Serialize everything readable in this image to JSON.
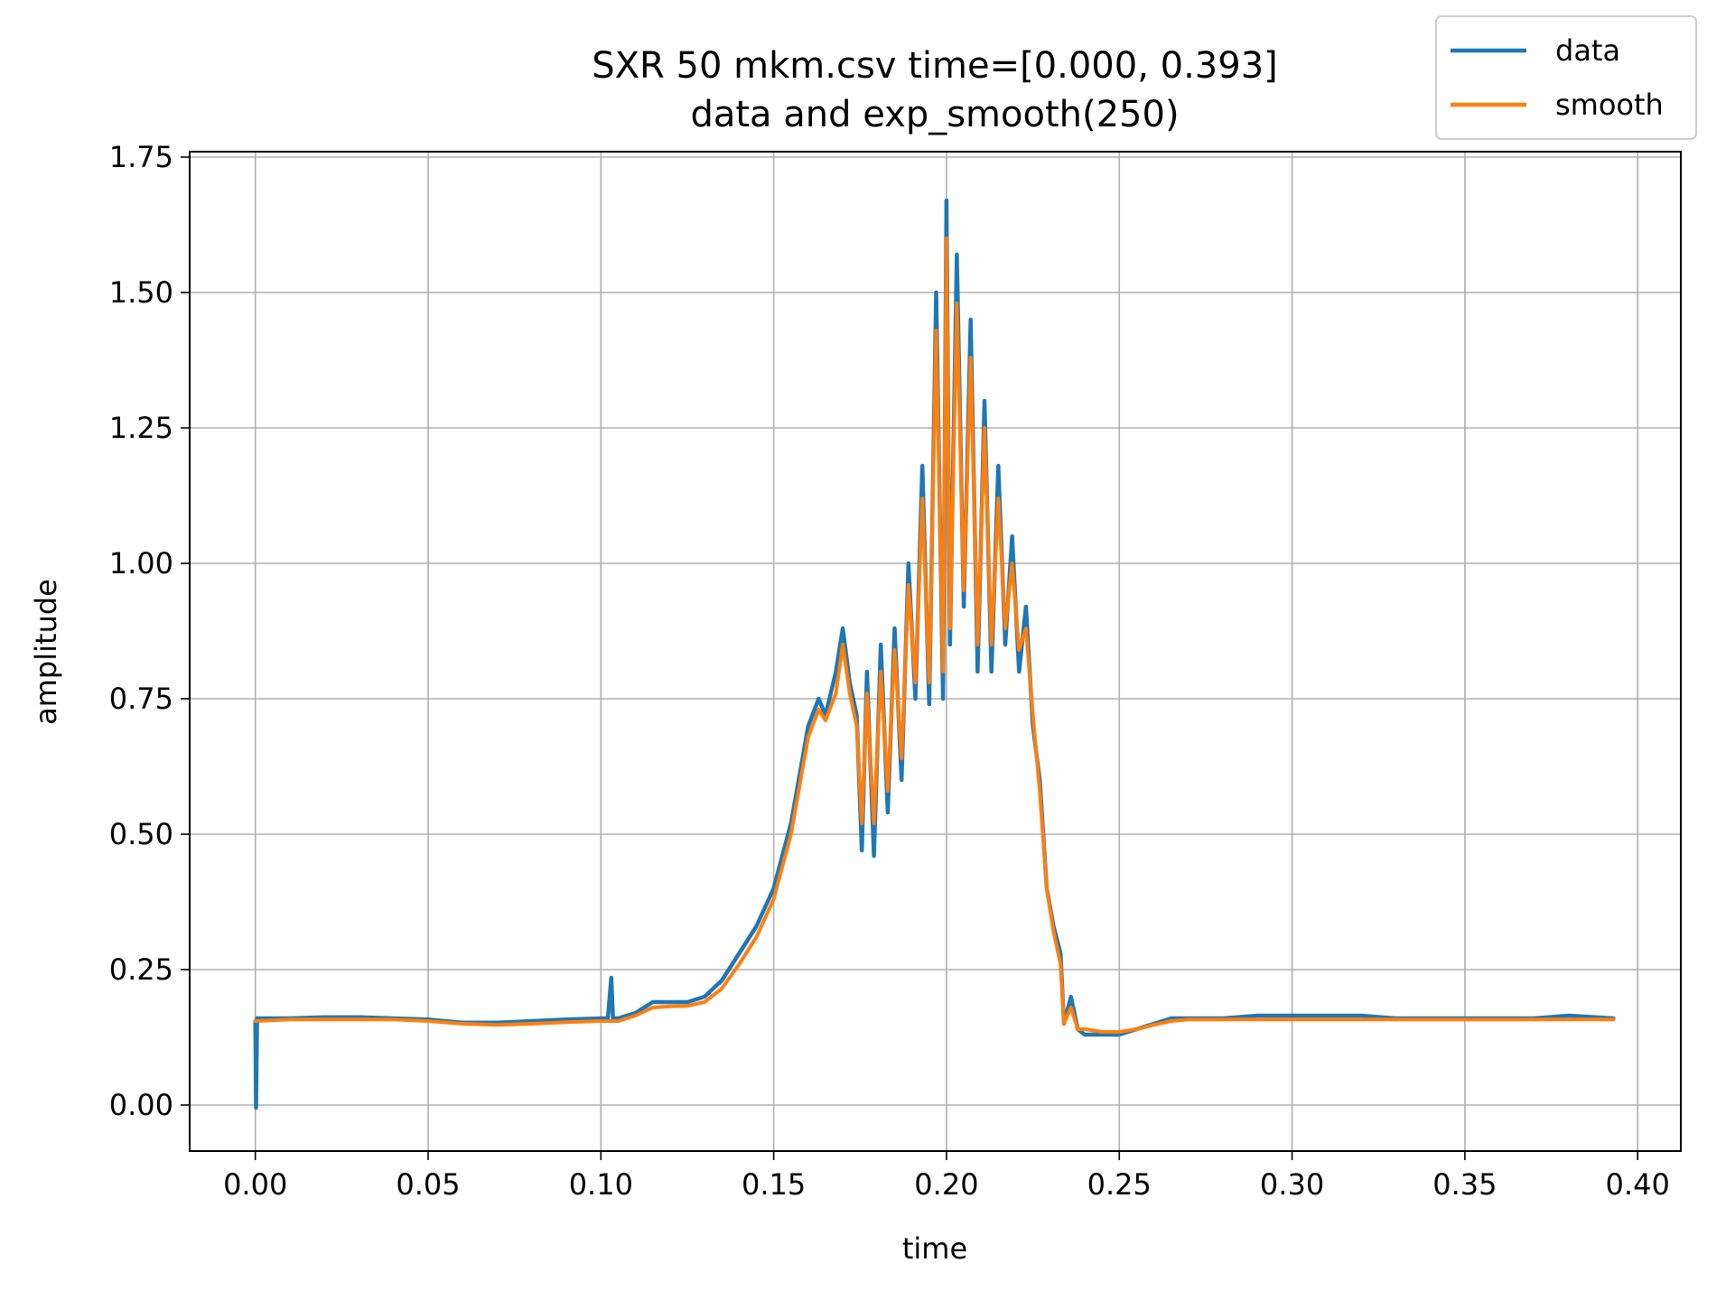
{
  "chart_data": {
    "type": "line",
    "title": "SXR 50 mkm.csv time=[0.000, 0.393]",
    "subtitle": "data and exp_smooth(250)",
    "xlabel": "time",
    "ylabel": "amplitude",
    "xlim": [
      -0.019,
      0.4125
    ],
    "ylim": [
      -0.085,
      1.76
    ],
    "xticks": [
      "0.00",
      "0.05",
      "0.10",
      "0.15",
      "0.20",
      "0.25",
      "0.30",
      "0.35",
      "0.40"
    ],
    "yticks": [
      "0.00",
      "0.25",
      "0.50",
      "0.75",
      "1.00",
      "1.25",
      "1.50",
      "1.75"
    ],
    "grid": true,
    "legend_position": "top-right, outside plot",
    "series": [
      {
        "name": "data",
        "color": "#1f77b4",
        "x": [
          0,
          0.0002,
          0.0005,
          0.01,
          0.02,
          0.03,
          0.04,
          0.05,
          0.06,
          0.07,
          0.08,
          0.09,
          0.1,
          0.102,
          0.103,
          0.1035,
          0.105,
          0.11,
          0.115,
          0.12,
          0.125,
          0.13,
          0.135,
          0.14,
          0.145,
          0.15,
          0.155,
          0.16,
          0.163,
          0.165,
          0.168,
          0.17,
          0.172,
          0.174,
          0.1755,
          0.177,
          0.179,
          0.181,
          0.183,
          0.185,
          0.187,
          0.189,
          0.191,
          0.193,
          0.195,
          0.197,
          0.199,
          0.2,
          0.201,
          0.203,
          0.205,
          0.207,
          0.209,
          0.211,
          0.213,
          0.215,
          0.217,
          0.219,
          0.221,
          0.223,
          0.225,
          0.227,
          0.229,
          0.231,
          0.233,
          0.234,
          0.236,
          0.238,
          0.24,
          0.245,
          0.25,
          0.255,
          0.26,
          0.265,
          0.27,
          0.28,
          0.29,
          0.3,
          0.31,
          0.32,
          0.33,
          0.34,
          0.35,
          0.36,
          0.37,
          0.38,
          0.393
        ],
        "values": [
          0.155,
          -0.005,
          0.16,
          0.16,
          0.162,
          0.162,
          0.16,
          0.158,
          0.152,
          0.152,
          0.155,
          0.158,
          0.16,
          0.16,
          0.235,
          0.16,
          0.16,
          0.17,
          0.19,
          0.19,
          0.19,
          0.2,
          0.23,
          0.28,
          0.33,
          0.4,
          0.52,
          0.7,
          0.75,
          0.72,
          0.8,
          0.88,
          0.78,
          0.72,
          0.47,
          0.8,
          0.46,
          0.85,
          0.54,
          0.88,
          0.6,
          1.0,
          0.75,
          1.18,
          0.74,
          1.5,
          0.75,
          1.67,
          0.85,
          1.57,
          0.92,
          1.45,
          0.8,
          1.3,
          0.8,
          1.18,
          0.85,
          1.05,
          0.8,
          0.92,
          0.7,
          0.6,
          0.4,
          0.33,
          0.28,
          0.15,
          0.2,
          0.14,
          0.13,
          0.13,
          0.13,
          0.14,
          0.15,
          0.16,
          0.16,
          0.16,
          0.165,
          0.165,
          0.165,
          0.165,
          0.16,
          0.16,
          0.16,
          0.16,
          0.16,
          0.165,
          0.16
        ]
      },
      {
        "name": "smooth",
        "color": "#ff7f0e",
        "x": [
          0,
          0.01,
          0.02,
          0.03,
          0.04,
          0.05,
          0.06,
          0.07,
          0.08,
          0.09,
          0.1,
          0.105,
          0.11,
          0.115,
          0.12,
          0.125,
          0.13,
          0.135,
          0.14,
          0.145,
          0.15,
          0.155,
          0.16,
          0.163,
          0.165,
          0.168,
          0.17,
          0.172,
          0.174,
          0.1755,
          0.177,
          0.179,
          0.181,
          0.183,
          0.185,
          0.187,
          0.189,
          0.191,
          0.193,
          0.195,
          0.197,
          0.199,
          0.2,
          0.201,
          0.203,
          0.205,
          0.207,
          0.209,
          0.211,
          0.213,
          0.215,
          0.217,
          0.219,
          0.221,
          0.223,
          0.225,
          0.227,
          0.229,
          0.231,
          0.233,
          0.234,
          0.236,
          0.238,
          0.24,
          0.245,
          0.25,
          0.255,
          0.26,
          0.265,
          0.27,
          0.28,
          0.29,
          0.3,
          0.31,
          0.32,
          0.33,
          0.34,
          0.35,
          0.36,
          0.37,
          0.38,
          0.393
        ],
        "values": [
          0.155,
          0.158,
          0.158,
          0.158,
          0.158,
          0.155,
          0.15,
          0.148,
          0.15,
          0.153,
          0.155,
          0.155,
          0.165,
          0.18,
          0.182,
          0.183,
          0.19,
          0.215,
          0.26,
          0.31,
          0.38,
          0.5,
          0.68,
          0.73,
          0.71,
          0.76,
          0.85,
          0.76,
          0.7,
          0.52,
          0.76,
          0.52,
          0.8,
          0.58,
          0.84,
          0.64,
          0.96,
          0.78,
          1.12,
          0.78,
          1.43,
          0.8,
          1.6,
          0.88,
          1.48,
          0.95,
          1.38,
          0.85,
          1.25,
          0.85,
          1.12,
          0.88,
          1.0,
          0.84,
          0.88,
          0.72,
          0.58,
          0.4,
          0.32,
          0.26,
          0.15,
          0.18,
          0.14,
          0.14,
          0.135,
          0.135,
          0.14,
          0.148,
          0.155,
          0.158,
          0.158,
          0.158,
          0.158,
          0.158,
          0.158,
          0.158,
          0.158,
          0.158,
          0.158,
          0.158,
          0.158,
          0.158
        ]
      }
    ]
  }
}
